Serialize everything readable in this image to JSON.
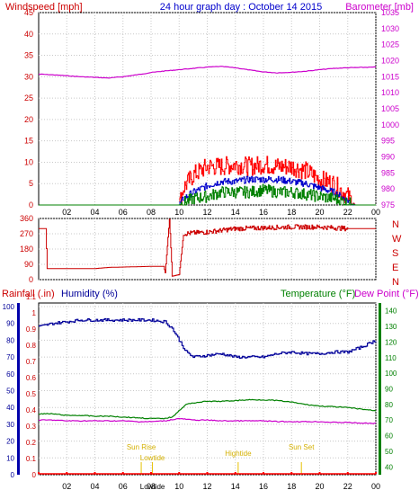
{
  "chart_data": [
    {
      "type": "line",
      "title": "24 hour graph day : October 14 2015",
      "left_axis_label": "Windspeed [mph]",
      "right_axis_label": "Barometer [mb]",
      "x_tick_labels": [
        "02",
        "04",
        "06",
        "08",
        "10",
        "12",
        "14",
        "16",
        "18",
        "20",
        "22",
        "00"
      ],
      "left_ticks": [
        0,
        5,
        10,
        15,
        20,
        25,
        30,
        35,
        40,
        45
      ],
      "right_ticks": [
        975,
        980,
        985,
        990,
        995,
        1000,
        1005,
        1010,
        1015,
        1020,
        1025,
        1030,
        1035
      ],
      "ylim_left": [
        0,
        45
      ],
      "ylim_right": [
        975,
        1035
      ],
      "grid": true,
      "series": [
        {
          "name": "Windspeed [mph]",
          "color": "#ff0000",
          "axis": "left",
          "x": [
            0,
            10,
            10.3,
            11,
            12,
            13,
            14,
            15,
            16,
            17,
            18,
            19,
            20,
            21,
            22,
            22.5,
            24
          ],
          "y": [
            0,
            0,
            4,
            7,
            9,
            9,
            9.5,
            9,
            9.5,
            9,
            9,
            8,
            6,
            5,
            2,
            0,
            0
          ]
        },
        {
          "name": "Average wind",
          "color": "#0000cc",
          "axis": "left",
          "x": [
            0,
            10,
            10.3,
            11,
            12,
            13,
            14,
            15,
            16,
            17,
            18,
            19,
            20,
            21,
            22,
            22.5,
            24
          ],
          "y": [
            0,
            0,
            1.5,
            3,
            4.5,
            5.5,
            5.5,
            6,
            6,
            6,
            5.5,
            5,
            4,
            3,
            1,
            0,
            0
          ]
        },
        {
          "name": "Wind low",
          "color": "#008000",
          "axis": "left",
          "x": [
            0,
            10,
            10.3,
            11,
            12,
            13,
            14,
            15,
            16,
            17,
            18,
            19,
            20,
            21,
            22,
            22.5,
            24
          ],
          "y": [
            0,
            0,
            0.5,
            1.5,
            2,
            3,
            3,
            3,
            3.5,
            3,
            3,
            2.5,
            2,
            1.5,
            0.5,
            0,
            0
          ]
        },
        {
          "name": "Barometer [mb]",
          "color": "#cc00cc",
          "axis": "right",
          "x": [
            0,
            1,
            2,
            3,
            4,
            5,
            6,
            7,
            8,
            9,
            10,
            11,
            12,
            13,
            14,
            15,
            16,
            17,
            18,
            19,
            20,
            21,
            22,
            23,
            24
          ],
          "y": [
            1015.8,
            1015.6,
            1015.3,
            1015.0,
            1014.8,
            1014.6,
            1015.0,
            1015.6,
            1016.3,
            1016.8,
            1017.2,
            1017.6,
            1018.0,
            1018.2,
            1017.8,
            1017.1,
            1016.5,
            1016.2,
            1016.4,
            1016.7,
            1017.2,
            1017.6,
            1017.8,
            1017.9,
            1018.0
          ]
        }
      ]
    },
    {
      "type": "line",
      "left_ticks": [
        0,
        90,
        180,
        270,
        360
      ],
      "right_ticks": [
        "N",
        "W",
        "S",
        "E",
        "N"
      ],
      "ylim": [
        0,
        360
      ],
      "grid": true,
      "series": [
        {
          "name": "Wind direction",
          "color": "#cc0000",
          "x": [
            0,
            0.5,
            0.6,
            4,
            5,
            8,
            8.9,
            9.0,
            9.3,
            9.5,
            10,
            10.3,
            11,
            12,
            14,
            16,
            18,
            20,
            21,
            22,
            24
          ],
          "y": [
            300,
            300,
            65,
            65,
            72,
            78,
            78,
            40,
            355,
            20,
            30,
            270,
            275,
            280,
            300,
            305,
            310,
            310,
            305,
            300,
            300
          ]
        }
      ]
    },
    {
      "type": "line",
      "axis_labels": {
        "rainfall": "Rainfall (.in)",
        "humidity": "Humidity (%)",
        "temperature": "Temperature (°F)",
        "dewpoint": "Dew Point (°F)"
      },
      "x_tick_labels": [
        "02",
        "04",
        "06",
        "08",
        "10",
        "12",
        "14",
        "16",
        "18",
        "20",
        "22",
        "00"
      ],
      "humidity_ticks": [
        0,
        10,
        20,
        30,
        40,
        50,
        60,
        70,
        80,
        90,
        100
      ],
      "rain_ticks": [
        "0",
        "0.1",
        "0.2",
        "0.3",
        "0.4",
        "0.5",
        "0.6",
        "0.7",
        "0.8",
        "0.9",
        "1",
        "1.1"
      ],
      "temp_ticks": [
        40,
        50,
        60,
        70,
        80,
        90,
        100,
        110,
        120,
        130,
        140
      ],
      "humidity_range": [
        0,
        100
      ],
      "temp_range": [
        35,
        145
      ],
      "annotations": [
        {
          "label": "Sun Rise",
          "hour": 7.3
        },
        {
          "label": "Lowtide",
          "hour": 8.1
        },
        {
          "label": "Hightide",
          "hour": 14.2
        },
        {
          "label": "Sun Set",
          "hour": 18.7
        }
      ],
      "bottom_labels": [
        "Lowtide"
      ],
      "series": [
        {
          "name": "Humidity (%)",
          "color": "#000099",
          "axis": "humidity",
          "x": [
            0,
            1,
            2,
            3,
            4,
            5,
            6,
            7,
            8,
            9,
            9.5,
            10,
            10.5,
            11,
            12,
            13,
            14,
            15,
            16,
            17,
            18,
            19,
            20,
            21,
            22,
            23,
            24
          ],
          "y": [
            88,
            90,
            91,
            92,
            92,
            92,
            92,
            92,
            92,
            91,
            87,
            80,
            73,
            70,
            71,
            72,
            70,
            70,
            70,
            72,
            73,
            72,
            72,
            73,
            73,
            76,
            80
          ]
        },
        {
          "name": "Temperature (°F)",
          "color": "#008000",
          "axis": "temp",
          "x": [
            0,
            1,
            2,
            3,
            4,
            5,
            6,
            7,
            8,
            9,
            9.5,
            10,
            10.5,
            11,
            12,
            13,
            14,
            15,
            16,
            17,
            18,
            19,
            20,
            21,
            22,
            23,
            24
          ],
          "y": [
            74,
            74,
            73,
            73,
            72.5,
            72.5,
            72,
            71.5,
            71,
            71,
            72,
            76,
            80,
            81,
            82,
            82,
            82.5,
            83,
            83,
            82.5,
            81.5,
            80,
            79,
            78.5,
            78,
            77,
            76
          ]
        },
        {
          "name": "Dew Point (°F)",
          "color": "#cc00cc",
          "axis": "temp",
          "x": [
            0,
            1,
            2,
            3,
            4,
            5,
            6,
            7,
            8,
            9,
            10,
            11,
            12,
            13,
            14,
            15,
            16,
            17,
            18,
            19,
            20,
            21,
            22,
            23,
            24
          ],
          "y": [
            70,
            70,
            69.5,
            69.5,
            69.5,
            69.5,
            69.5,
            69,
            69,
            69.5,
            71,
            70,
            70,
            69.5,
            69.5,
            69.5,
            69.5,
            69,
            69,
            69,
            69,
            68.5,
            68.5,
            68,
            68
          ]
        },
        {
          "name": "Rainfall (.in)",
          "color": "#ff0000",
          "axis": "rain",
          "x": [
            0,
            24
          ],
          "y": [
            0,
            0
          ]
        }
      ]
    }
  ]
}
